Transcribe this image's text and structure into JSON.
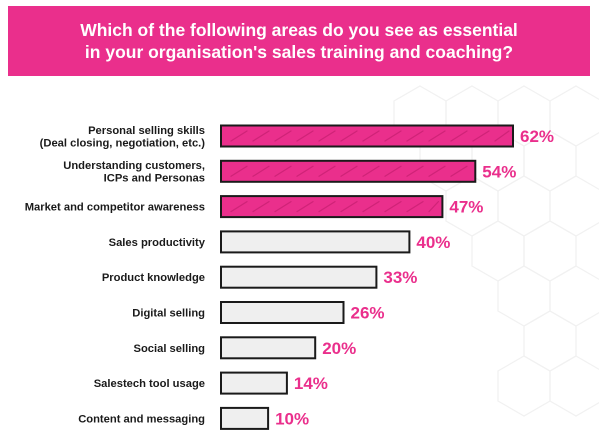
{
  "title": "Which of the following areas do you see as essential\nin your organisation's sales training and coaching?",
  "colors": {
    "highlight": "#ea2f8c",
    "neutral": "#efefef",
    "outline": "#1a1a1a",
    "banner_text": "#ffffff"
  },
  "chart_data": {
    "type": "bar",
    "orientation": "horizontal",
    "title": "Which of the following areas do you see as essential in your organisation's sales training and coaching?",
    "categories": [
      "Personal selling skills\n(Deal closing, negotiation, etc.)",
      "Understanding customers,\nICPs and Personas",
      "Market and competitor awareness",
      "Sales productivity",
      "Product knowledge",
      "Digital selling",
      "Social selling",
      "Salestech tool usage",
      "Content and messaging"
    ],
    "values": [
      62,
      54,
      47,
      40,
      33,
      26,
      20,
      14,
      10
    ],
    "value_labels": [
      "62%",
      "54%",
      "47%",
      "40%",
      "33%",
      "26%",
      "20%",
      "14%",
      "10%"
    ],
    "highlighted": [
      true,
      true,
      true,
      false,
      false,
      false,
      false,
      false,
      false
    ],
    "unit": "%",
    "xlim": [
      0,
      62
    ],
    "grid": false,
    "legend": "none"
  }
}
